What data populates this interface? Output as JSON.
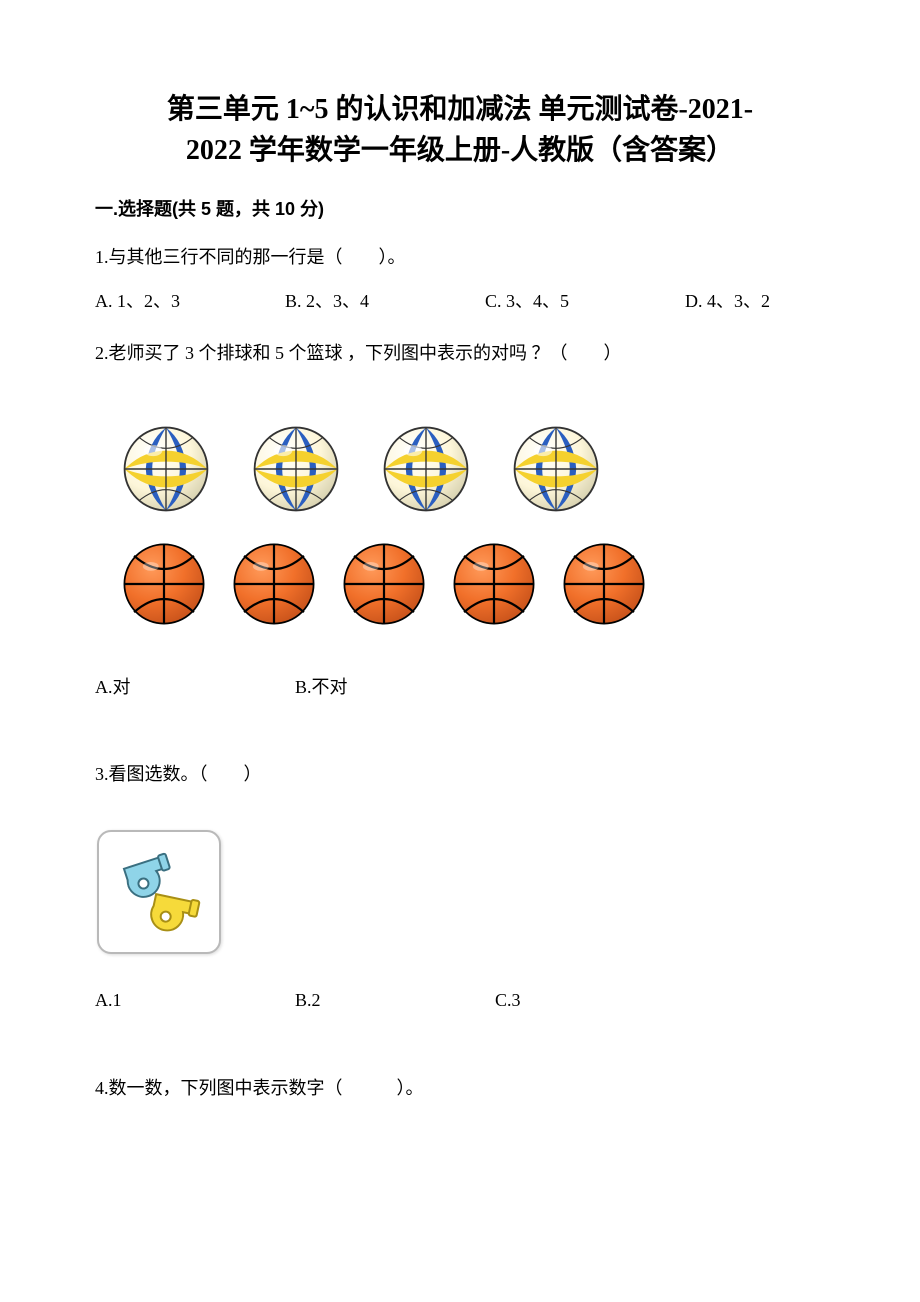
{
  "title_line1": "第三单元 1~5 的认识和加减法 单元测试卷-2021-",
  "title_line2": "2022 学年数学一年级上册-人教版（含答案）",
  "section1": {
    "header": "一.选择题(共 5 题，共 10 分)"
  },
  "q1": {
    "text": "1.与其他三行不同的那一行是（　　）。",
    "a": "A. 1、2、3",
    "b": "B. 2、3、4",
    "c": "C. 3、4、5",
    "d": "D. 4、3、2"
  },
  "q2": {
    "text": "2.老师买了 3 个排球和 5 个篮球 ，下列图中表示的对吗 ？（　　）",
    "volleyball_count": 4,
    "basketball_count": 5,
    "a": "A.对",
    "b": "B.不对"
  },
  "q3": {
    "text": "3.看图选数。（　　）",
    "a": "A.1",
    "b": "B.2",
    "c": "C.3"
  },
  "q4": {
    "text": "4.数一数，下列图中表示数字（　　　）。"
  },
  "style": {
    "volleyball": {
      "size": 92,
      "base_color": "#fdf6d9",
      "blue": "#2b5fc0",
      "yellow": "#f5d12e",
      "outline": "#333333"
    },
    "basketball": {
      "size": 88,
      "fill": "#f1702a",
      "line": "#000000"
    },
    "whistle": {
      "blue": "#8fd4e8",
      "yellow": "#f6da3a",
      "outline": "#3a3a3a"
    },
    "page_bg": "#ffffff",
    "text_color": "#000000",
    "title_fontsize": 28,
    "body_fontsize": 18
  }
}
